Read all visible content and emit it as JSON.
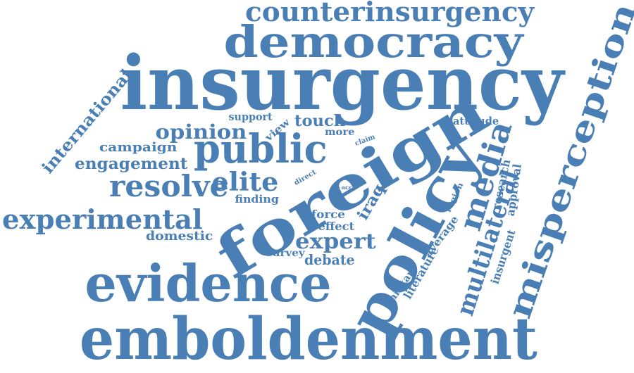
{
  "cloud": {
    "color": "#4a7fb5",
    "words": {
      "insurgency": "insurgency",
      "emboldenment": "emboldenment",
      "evidence": "evidence",
      "foreign": "foreign",
      "policy": "policy",
      "democracy": "democracy",
      "misperception": "misperception",
      "counterinsurgency": "counterinsurgency",
      "public": "public",
      "resolve": "resolve",
      "experimental": "experimental",
      "media": "media",
      "multilateral": "multilateral",
      "elite": "elite",
      "opinion": "opinion",
      "expert": "expert",
      "international": "international",
      "engagement": "engagement",
      "campaign": "campaign",
      "debate": "debate",
      "touch": "touch",
      "iraq": "iraq",
      "force": "force",
      "effect": "effect",
      "domestic": "domestic",
      "approval": "approval",
      "research": "research",
      "literature": "literature",
      "insurgent": "insurgent",
      "average": "average",
      "military": "military",
      "attitude": "attitude",
      "support": "support",
      "view": "view",
      "more": "more",
      "claim": "claim",
      "direct": "direct",
      "finding": "finding",
      "survey": "survey",
      "region": "region",
      "acc": "acc"
    }
  }
}
